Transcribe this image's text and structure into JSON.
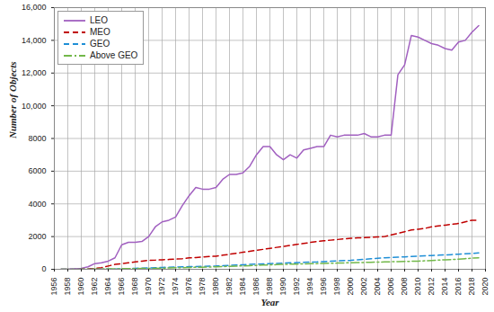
{
  "chart_data": {
    "type": "line",
    "xlabel": "Year",
    "ylabel": "Number of Objects",
    "x": [
      1957,
      1958,
      1959,
      1960,
      1961,
      1962,
      1963,
      1964,
      1965,
      1966,
      1967,
      1968,
      1969,
      1970,
      1971,
      1972,
      1973,
      1974,
      1975,
      1976,
      1977,
      1978,
      1979,
      1980,
      1981,
      1982,
      1983,
      1984,
      1985,
      1986,
      1987,
      1988,
      1989,
      1990,
      1991,
      1992,
      1993,
      1994,
      1995,
      1996,
      1997,
      1998,
      1999,
      2000,
      2001,
      2002,
      2003,
      2004,
      2005,
      2006,
      2007,
      2008,
      2009,
      2010,
      2011,
      2012,
      2013,
      2014,
      2015,
      2016,
      2017,
      2018,
      2019
    ],
    "series": [
      {
        "name": "LEO",
        "color": "#a160c0",
        "line_style": "solid",
        "values": [
          0,
          10,
          30,
          60,
          150,
          350,
          400,
          500,
          700,
          1500,
          1650,
          1650,
          1700,
          2000,
          2600,
          2900,
          3000,
          3200,
          3900,
          4500,
          5000,
          4900,
          4900,
          5000,
          5500,
          5800,
          5800,
          5900,
          6300,
          7000,
          7500,
          7500,
          7000,
          6700,
          7000,
          6800,
          7300,
          7400,
          7500,
          7500,
          8200,
          8100,
          8200,
          8200,
          8200,
          8300,
          8100,
          8100,
          8200,
          8200,
          11900,
          12500,
          14300,
          14200,
          14000,
          13800,
          13700,
          13500,
          13400,
          13900,
          14000,
          14500,
          14900
        ]
      },
      {
        "name": "MEO",
        "color": "#c00000",
        "line_style": "dashed",
        "values": [
          0,
          0,
          0,
          10,
          30,
          50,
          100,
          200,
          300,
          350,
          400,
          450,
          500,
          550,
          560,
          580,
          600,
          620,
          650,
          700,
          720,
          750,
          780,
          800,
          860,
          920,
          980,
          1040,
          1100,
          1160,
          1220,
          1280,
          1340,
          1400,
          1460,
          1520,
          1580,
          1640,
          1700,
          1740,
          1780,
          1820,
          1860,
          1900,
          1920,
          1940,
          1960,
          1980,
          2000,
          2100,
          2200,
          2300,
          2400,
          2450,
          2500,
          2600,
          2650,
          2700,
          2750,
          2800,
          2900,
          3000,
          3000
        ]
      },
      {
        "name": "GEO",
        "color": "#1f8fd6",
        "line_style": "dashed",
        "values": [
          0,
          0,
          0,
          0,
          0,
          0,
          5,
          10,
          20,
          30,
          40,
          55,
          70,
          80,
          95,
          110,
          125,
          140,
          150,
          160,
          170,
          180,
          190,
          200,
          220,
          240,
          260,
          280,
          300,
          315,
          330,
          345,
          360,
          380,
          395,
          410,
          425,
          440,
          450,
          470,
          490,
          510,
          530,
          550,
          580,
          610,
          640,
          670,
          700,
          720,
          740,
          760,
          780,
          800,
          820,
          840,
          860,
          880,
          900,
          925,
          950,
          975,
          1000
        ]
      },
      {
        "name": "Above GEO",
        "color": "#72b84a",
        "line_style": "dashdot",
        "values": [
          0,
          0,
          0,
          5,
          10,
          15,
          20,
          25,
          30,
          35,
          40,
          45,
          50,
          50,
          60,
          70,
          80,
          90,
          100,
          110,
          120,
          130,
          140,
          150,
          165,
          180,
          195,
          210,
          225,
          240,
          255,
          270,
          285,
          300,
          310,
          320,
          330,
          340,
          350,
          360,
          370,
          380,
          390,
          400,
          410,
          420,
          430,
          440,
          450,
          460,
          470,
          480,
          490,
          500,
          520,
          540,
          560,
          580,
          600,
          620,
          650,
          680,
          700
        ]
      }
    ],
    "xlim": [
      1956,
      2020
    ],
    "xticks": [
      1956,
      1958,
      1960,
      1962,
      1964,
      1966,
      1968,
      1970,
      1972,
      1974,
      1976,
      1978,
      1980,
      1982,
      1984,
      1986,
      1988,
      1990,
      1992,
      1994,
      1996,
      1998,
      2000,
      2002,
      2004,
      2006,
      2008,
      2010,
      2012,
      2014,
      2016,
      2018,
      2020
    ],
    "ylim": [
      0,
      16000
    ],
    "yticks": [
      0,
      2000,
      4000,
      6000,
      8000,
      {
        "value": 10000,
        "label": "10,000"
      },
      {
        "value": 12000,
        "label": "12,000"
      },
      {
        "value": 14000,
        "label": "14,000"
      },
      {
        "value": 16000,
        "label": "16,000"
      }
    ],
    "grid": true,
    "legend": "top-left"
  }
}
